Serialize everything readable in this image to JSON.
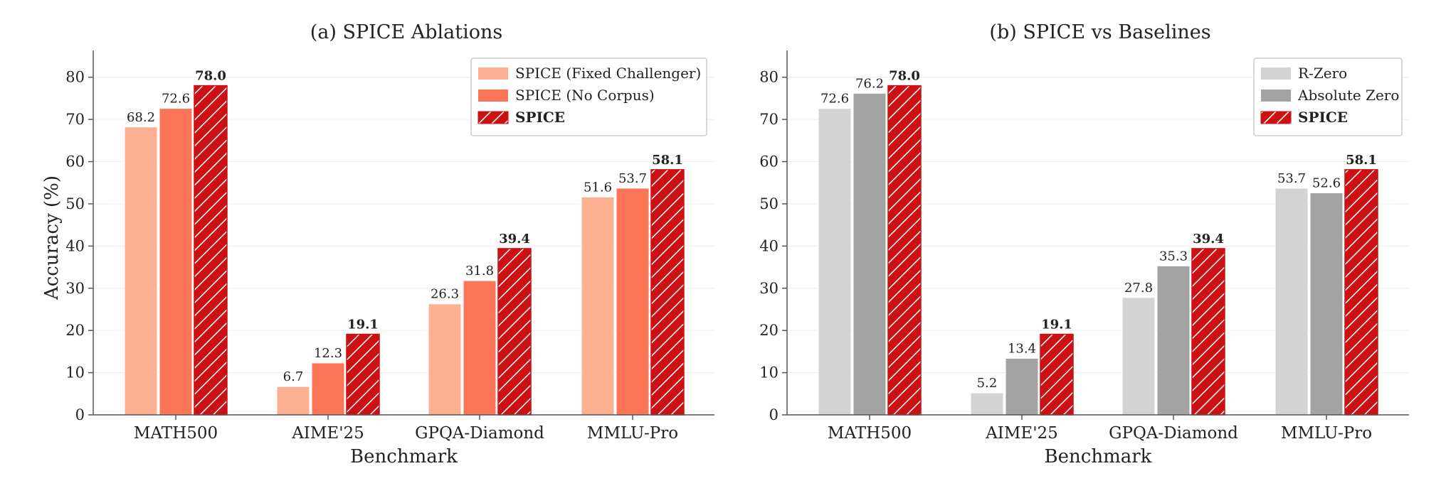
{
  "chart_data": [
    {
      "type": "bar",
      "title": "(a) SPICE Ablations",
      "xlabel": "Benchmark",
      "ylabel": "Accuracy (%)",
      "ylim": [
        0,
        85
      ],
      "yticks": [
        0,
        10,
        20,
        30,
        40,
        50,
        60,
        70,
        80
      ],
      "grid": "horizontal, faint",
      "legend_position": "top-right",
      "categories": [
        "MATH500",
        "AIME'25",
        "GPQA-Diamond",
        "MMLU-Pro"
      ],
      "series": [
        {
          "name": "SPICE (Fixed Challenger)",
          "values": [
            68.2,
            6.7,
            26.3,
            51.6
          ],
          "color": "#fcb091",
          "hatch": false,
          "bold": false
        },
        {
          "name": "SPICE (No Corpus)",
          "values": [
            72.6,
            12.3,
            31.8,
            53.7
          ],
          "color": "#fb7556",
          "hatch": false,
          "bold": false
        },
        {
          "name": "SPICE",
          "values": [
            78.0,
            19.1,
            39.4,
            58.1
          ],
          "color": "#cc1115",
          "hatch": true,
          "bold": true
        }
      ]
    },
    {
      "type": "bar",
      "title": "(b) SPICE vs Baselines",
      "xlabel": "Benchmark",
      "ylabel": "",
      "ylim": [
        0,
        85
      ],
      "yticks": [
        0,
        10,
        20,
        30,
        40,
        50,
        60,
        70,
        80
      ],
      "grid": "horizontal, faint",
      "legend_position": "top-right",
      "categories": [
        "MATH500",
        "AIME'25",
        "GPQA-Diamond",
        "MMLU-Pro"
      ],
      "series": [
        {
          "name": "R-Zero",
          "values": [
            72.6,
            5.2,
            27.8,
            53.7
          ],
          "color": "#d3d3d3",
          "hatch": false,
          "bold": false
        },
        {
          "name": "Absolute Zero",
          "values": [
            76.2,
            13.4,
            35.3,
            52.6
          ],
          "color": "#a3a3a3",
          "hatch": false,
          "bold": false
        },
        {
          "name": "SPICE",
          "values": [
            78.0,
            19.1,
            39.4,
            58.1
          ],
          "color": "#cc1115",
          "hatch": true,
          "bold": true
        }
      ]
    }
  ]
}
